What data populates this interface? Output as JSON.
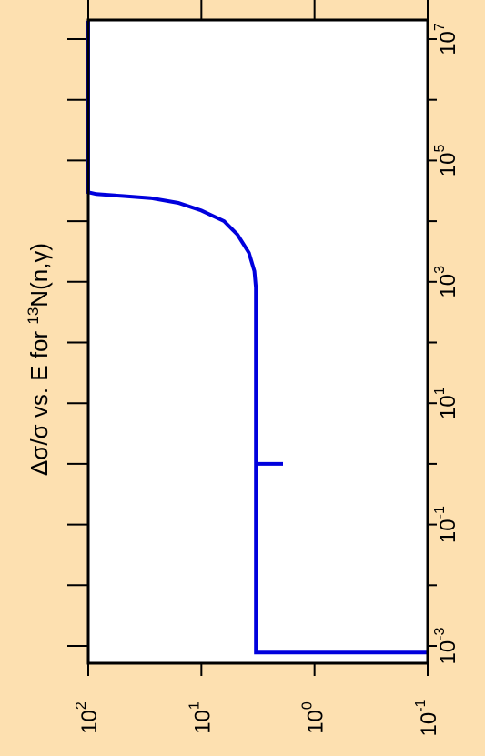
{
  "colors": {
    "background": "#fde0b0",
    "plot_area": "#ffffff",
    "axis": "#000000",
    "series": "#0000dd"
  },
  "chart_data": {
    "type": "line",
    "orientation": "rotated-90-clockwise",
    "title": {
      "prefix": "Δσ/σ vs. E for ",
      "isotope_mass": "13",
      "reaction": "N(n,γ)"
    },
    "xlabel": "",
    "ylabel": "",
    "x_axis": {
      "scale": "log",
      "range": [
        0.001,
        20000000
      ],
      "ticks": [
        {
          "base": "10",
          "exp": "-3",
          "value": 0.001
        },
        {
          "base": "10",
          "exp": "-1",
          "value": 0.1
        },
        {
          "base": "10",
          "exp": "1",
          "value": 10
        },
        {
          "base": "10",
          "exp": "3",
          "value": 1000
        },
        {
          "base": "10",
          "exp": "5",
          "value": 100000
        },
        {
          "base": "10",
          "exp": "7",
          "value": 10000000
        }
      ],
      "minor_ticks": [
        0.01,
        1,
        100,
        10000,
        1000000
      ]
    },
    "y_axis": {
      "scale": "log",
      "range": [
        0.1,
        100
      ],
      "direction": "decreasing",
      "ticks": [
        {
          "base": "10",
          "exp": "2",
          "value": 100
        },
        {
          "base": "10",
          "exp": "1",
          "value": 10
        },
        {
          "base": "10",
          "exp": "0",
          "value": 1
        },
        {
          "base": "10",
          "exp": "-1",
          "value": 0.1
        }
      ]
    },
    "series": [
      {
        "points": [
          [
            0.00078,
            0.1
          ],
          [
            0.00078,
            3.3
          ],
          [
            1,
            3.3
          ],
          [
            1,
            1.9
          ],
          [
            1,
            3.3
          ],
          [
            800,
            3.3
          ],
          [
            1500,
            3.4
          ],
          [
            3000,
            3.8
          ],
          [
            6000,
            4.8
          ],
          [
            10000,
            6.3
          ],
          [
            15000,
            10
          ],
          [
            20000,
            16
          ],
          [
            24000,
            28
          ],
          [
            26000,
            50
          ],
          [
            28000,
            85
          ],
          [
            30000,
            100
          ],
          [
            20000000,
            100
          ]
        ]
      }
    ]
  }
}
